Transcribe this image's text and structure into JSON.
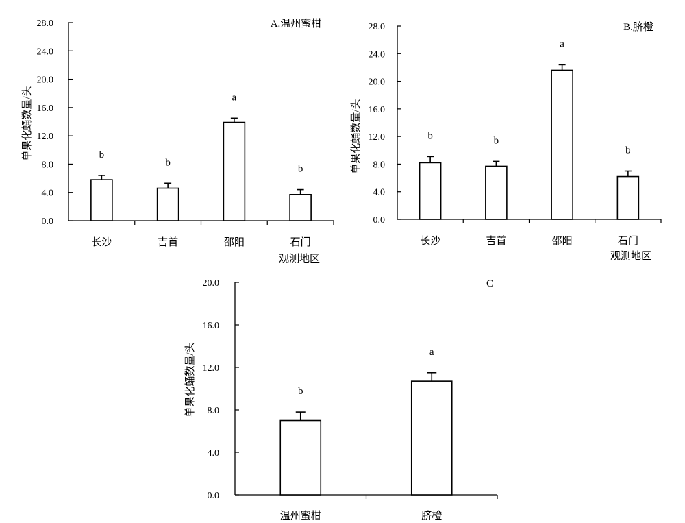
{
  "chart_data": [
    {
      "type": "bar",
      "title": "A.温州蜜柑",
      "ylabel": "单果化蛹数量/头",
      "xlabel": "观测地区",
      "ylim": [
        0,
        28
      ],
      "yticks": [
        "0.0",
        "4.0",
        "8.0",
        "12.0",
        "16.0",
        "20.0",
        "24.0",
        "28.0"
      ],
      "categories": [
        "长沙",
        "吉首",
        "邵阳",
        "石门"
      ],
      "values": [
        5.8,
        4.6,
        13.9,
        3.7
      ],
      "errors": [
        0.6,
        0.7,
        0.6,
        0.7
      ],
      "significance": [
        "b",
        "b",
        "a",
        "b"
      ],
      "bar_fill": "#ffffff",
      "stroke": "#000000"
    },
    {
      "type": "bar",
      "title": "B.脐橙",
      "ylabel": "单果化蛹数量/头",
      "xlabel": "观测地区",
      "ylim": [
        0,
        28
      ],
      "yticks": [
        "0.0",
        "4.0",
        "8.0",
        "12.0",
        "16.0",
        "20.0",
        "24.0",
        "28.0"
      ],
      "categories": [
        "长沙",
        "吉首",
        "邵阳",
        "石门"
      ],
      "values": [
        8.2,
        7.7,
        21.6,
        6.2
      ],
      "errors": [
        0.9,
        0.7,
        0.8,
        0.8
      ],
      "significance": [
        "b",
        "b",
        "a",
        "b"
      ],
      "bar_fill": "#ffffff",
      "stroke": "#000000"
    },
    {
      "type": "bar",
      "title": "C",
      "ylabel": "单果化蛹数量/头",
      "xlabel": "",
      "ylim": [
        0,
        20
      ],
      "yticks": [
        "0.0",
        "4.0",
        "8.0",
        "12.0",
        "16.0",
        "20.0"
      ],
      "categories": [
        "温州蜜柑",
        "脐橙"
      ],
      "values": [
        7.0,
        10.7
      ],
      "errors": [
        0.8,
        0.8
      ],
      "significance": [
        "b",
        "a"
      ],
      "bar_fill": "#ffffff",
      "stroke": "#000000"
    }
  ]
}
